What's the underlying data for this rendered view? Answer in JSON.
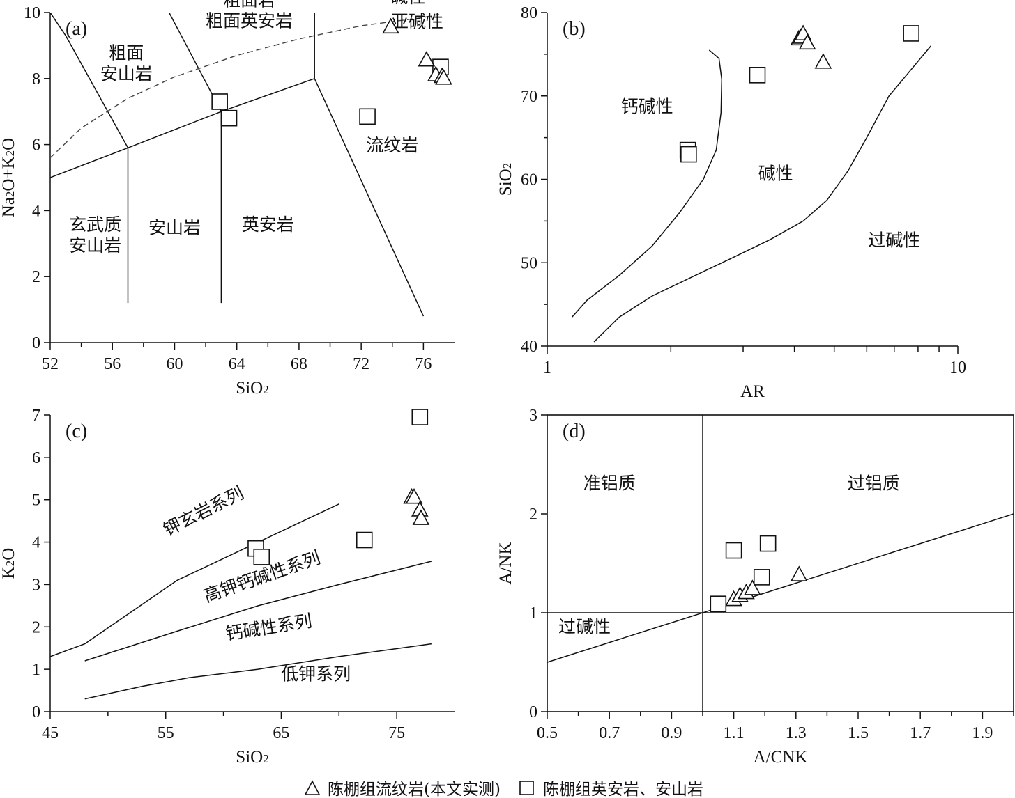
{
  "legend": {
    "triangle_label": "陈棚组流纹岩(本文实测)",
    "square_label": "陈棚组英安岩、安山岩"
  },
  "chart_data": [
    {
      "id": "a",
      "type": "scatter",
      "panel_label": "(a)",
      "xlabel": "SiO₂",
      "ylabel": "Na₂O+K₂O",
      "xlim": [
        52,
        78
      ],
      "ylim": [
        0,
        10
      ],
      "xticks": [
        52,
        56,
        60,
        64,
        68,
        72,
        76
      ],
      "yticks": [
        0,
        2,
        4,
        6,
        8,
        10
      ],
      "boundaries": [
        [
          [
            52,
            10
          ],
          [
            53,
            9.3
          ],
          [
            57,
            5.9
          ]
        ],
        [
          [
            52,
            5.0
          ],
          [
            57,
            5.9
          ],
          [
            63,
            7.0
          ],
          [
            69,
            8.0
          ]
        ],
        [
          [
            57,
            1.2
          ],
          [
            57,
            5.9
          ]
        ],
        [
          [
            63,
            1.2
          ],
          [
            63,
            7.0
          ]
        ],
        [
          [
            69,
            8.0
          ],
          [
            76,
            0.8
          ]
        ],
        [
          [
            69,
            8.0
          ],
          [
            69,
            10.4
          ]
        ],
        [
          [
            59.2,
            10.4
          ],
          [
            63,
            7.0
          ]
        ]
      ],
      "dashed_boundary": [
        [
          52,
          5.6
        ],
        [
          54,
          6.5
        ],
        [
          57,
          7.4
        ],
        [
          60,
          8.05
        ],
        [
          64,
          8.7
        ],
        [
          68,
          9.2
        ],
        [
          72,
          9.6
        ],
        [
          76,
          9.85
        ],
        [
          77,
          9.95
        ]
      ],
      "regions": [
        {
          "lines": [
            "碱性"
          ],
          "x": 75.0,
          "y": 10.3
        },
        {
          "lines": [
            "亚碱性"
          ],
          "x": 75.6,
          "y": 9.55
        },
        {
          "lines": [
            "粗面岩",
            "粗面英安岩"
          ],
          "x": 64.8,
          "y": 10.2
        },
        {
          "lines": [
            "粗面",
            "安山岩"
          ],
          "x": 56.9,
          "y": 8.6
        },
        {
          "lines": [
            "流纹岩"
          ],
          "x": 74.0,
          "y": 5.8
        },
        {
          "lines": [
            "英安岩"
          ],
          "x": 66.0,
          "y": 3.4
        },
        {
          "lines": [
            "安山岩"
          ],
          "x": 60.0,
          "y": 3.3
        },
        {
          "lines": [
            "玄武质",
            "安山岩"
          ],
          "x": 54.9,
          "y": 3.4
        }
      ],
      "triangles": [
        [
          73.9,
          9.55
        ],
        [
          76.2,
          8.55
        ],
        [
          76.8,
          8.1
        ],
        [
          77.2,
          8.05
        ],
        [
          77.3,
          8.0
        ]
      ],
      "squares": [
        [
          62.9,
          7.3
        ],
        [
          63.5,
          6.8
        ],
        [
          72.4,
          6.85
        ],
        [
          77.1,
          8.35
        ]
      ]
    },
    {
      "id": "b",
      "type": "scatter",
      "panel_label": "(b)",
      "xlabel": "AR",
      "ylabel": "SiO₂",
      "xscale": "log",
      "xlim": [
        1,
        10
      ],
      "ylim": [
        40,
        80
      ],
      "xticks": [
        1,
        10
      ],
      "yticks": [
        40,
        50,
        60,
        70,
        80
      ],
      "boundaries": [
        [
          [
            1.15,
            43.5
          ],
          [
            1.25,
            45.5
          ],
          [
            1.5,
            48.5
          ],
          [
            1.8,
            52
          ],
          [
            2.1,
            56
          ],
          [
            2.4,
            60
          ],
          [
            2.58,
            63.5
          ],
          [
            2.65,
            68
          ],
          [
            2.66,
            72
          ],
          [
            2.62,
            74.5
          ],
          [
            2.48,
            75.5
          ]
        ],
        [
          [
            1.3,
            40.5
          ],
          [
            1.5,
            43.5
          ],
          [
            1.8,
            46
          ],
          [
            2.3,
            48.5
          ],
          [
            2.8,
            50.5
          ],
          [
            3.5,
            52.8
          ],
          [
            4.2,
            55
          ],
          [
            4.8,
            57.5
          ],
          [
            5.4,
            61
          ],
          [
            6.0,
            65
          ],
          [
            6.8,
            70
          ],
          [
            7.5,
            72.5
          ],
          [
            8.6,
            76
          ]
        ]
      ],
      "regions": [
        {
          "lines": [
            "钙碱性"
          ],
          "x": 1.75,
          "y": 68
        },
        {
          "lines": [
            "碱性"
          ],
          "x": 3.6,
          "y": 60
        },
        {
          "lines": [
            "过碱性"
          ],
          "x": 7.0,
          "y": 52
        }
      ],
      "triangles": [
        [
          4.1,
          76.8
        ],
        [
          4.15,
          77.0
        ],
        [
          4.2,
          77.4
        ],
        [
          4.3,
          76.3
        ],
        [
          4.7,
          74.0
        ]
      ],
      "squares": [
        [
          2.2,
          63.5
        ],
        [
          2.21,
          63.0
        ],
        [
          3.25,
          72.5
        ],
        [
          7.7,
          77.5
        ]
      ]
    },
    {
      "id": "c",
      "type": "scatter",
      "panel_label": "(c)",
      "xlabel": "SiO₂",
      "ylabel": "K₂O",
      "xlim": [
        45,
        80
      ],
      "ylim": [
        0,
        7
      ],
      "xticks": [
        45,
        55,
        65,
        75
      ],
      "yticks": [
        0,
        1,
        2,
        3,
        4,
        5,
        6,
        7
      ],
      "boundaries": [
        [
          [
            45,
            1.3
          ],
          [
            48,
            1.6
          ],
          [
            56,
            3.1
          ],
          [
            63,
            4.0
          ],
          [
            70,
            4.9
          ]
        ],
        [
          [
            48,
            1.2
          ],
          [
            56,
            1.9
          ],
          [
            63,
            2.5
          ],
          [
            70,
            3.0
          ],
          [
            78,
            3.55
          ]
        ],
        [
          [
            48,
            0.3
          ],
          [
            53,
            0.6
          ],
          [
            57,
            0.8
          ],
          [
            63,
            1.0
          ],
          [
            70,
            1.3
          ],
          [
            78,
            1.6
          ]
        ]
      ],
      "regions": [
        {
          "lines": [
            "钾玄岩系列"
          ],
          "x": 58.5,
          "y": 4.6,
          "angle": -27
        },
        {
          "lines": [
            "高钾钙碱性系列"
          ],
          "x": 63.5,
          "y": 3.05,
          "angle": -19
        },
        {
          "lines": [
            "钙碱性系列"
          ],
          "x": 64.0,
          "y": 1.85,
          "angle": -9
        },
        {
          "lines": [
            "低钾系列"
          ],
          "x": 68.0,
          "y": 0.75
        }
      ],
      "triangles": [
        [
          76.3,
          5.05
        ],
        [
          76.5,
          5.05
        ],
        [
          77.0,
          4.75
        ],
        [
          77.1,
          4.55
        ]
      ],
      "squares": [
        [
          62.8,
          3.85
        ],
        [
          63.3,
          3.65
        ],
        [
          72.2,
          4.05
        ],
        [
          77.0,
          6.95
        ]
      ]
    },
    {
      "id": "d",
      "type": "scatter",
      "panel_label": "(d)",
      "xlabel": "A/CNK",
      "ylabel": "A/NK",
      "xlim": [
        0.5,
        2.0
      ],
      "ylim": [
        0,
        3
      ],
      "xticks": [
        0.5,
        0.7,
        0.9,
        1.1,
        1.3,
        1.5,
        1.7,
        1.9
      ],
      "yticks": [
        0,
        1,
        2,
        3
      ],
      "boundaries": [
        [
          [
            1.0,
            0
          ],
          [
            1.0,
            3
          ]
        ],
        [
          [
            0.5,
            1.0
          ],
          [
            2.0,
            1.0
          ]
        ],
        [
          [
            0.5,
            0.5
          ],
          [
            2.0,
            2.0
          ]
        ]
      ],
      "regions": [
        {
          "lines": [
            "准铝质"
          ],
          "x": 0.7,
          "y": 2.25
        },
        {
          "lines": [
            "过铝质"
          ],
          "x": 1.55,
          "y": 2.25
        },
        {
          "lines": [
            "过碱性"
          ],
          "x": 0.62,
          "y": 0.8
        }
      ],
      "triangles": [
        [
          1.1,
          1.13
        ],
        [
          1.12,
          1.17
        ],
        [
          1.14,
          1.2
        ],
        [
          1.16,
          1.24
        ],
        [
          1.31,
          1.38
        ]
      ],
      "squares": [
        [
          1.05,
          1.09
        ],
        [
          1.1,
          1.63
        ],
        [
          1.19,
          1.36
        ],
        [
          1.21,
          1.7
        ]
      ]
    }
  ]
}
